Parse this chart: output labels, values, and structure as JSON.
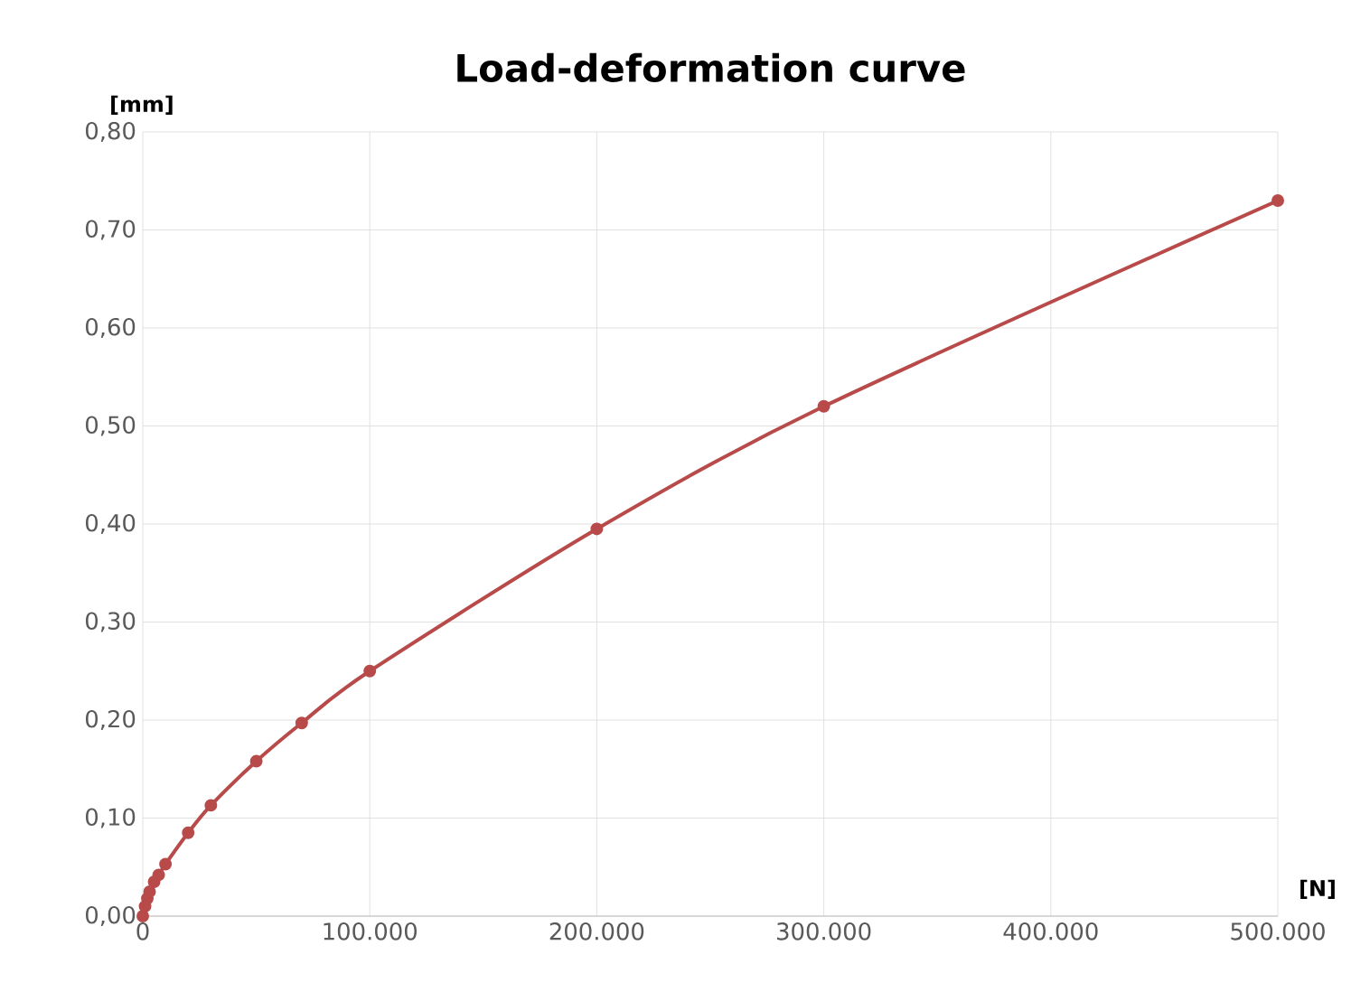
{
  "chart_data": {
    "type": "line",
    "title": "Load-deformation curve",
    "xlabel": "[N]",
    "ylabel": "[mm]",
    "x": [
      0,
      1000,
      2000,
      3000,
      5000,
      7000,
      10000,
      20000,
      30000,
      50000,
      70000,
      100000,
      200000,
      300000,
      500000
    ],
    "series": [
      {
        "color": "#b84a4a",
        "values": [
          0,
          0.01,
          0.018,
          0.025,
          0.035,
          0.042,
          0.053,
          0.085,
          0.113,
          0.158,
          0.197,
          0.25,
          0.395,
          0.52,
          0.73
        ]
      }
    ],
    "xlim": [
      0,
      500000
    ],
    "ylim": [
      0,
      0.8
    ],
    "xticks": [
      0,
      {
        "value": 100000,
        "label": "100.000"
      },
      {
        "value": 200000,
        "label": "200.000"
      },
      {
        "value": 300000,
        "label": "300.000"
      },
      {
        "value": 400000,
        "label": "400.000"
      },
      {
        "value": 500000,
        "label": "500.000"
      }
    ],
    "yticks": [
      {
        "value": 0,
        "label": "0,00"
      },
      {
        "value": 0.1,
        "label": "0,10"
      },
      {
        "value": 0.2,
        "label": "0,20"
      },
      {
        "value": 0.3,
        "label": "0,30"
      },
      {
        "value": 0.4,
        "label": "0,40"
      },
      {
        "value": 0.5,
        "label": "0,50"
      },
      {
        "value": 0.6,
        "label": "0,60"
      },
      {
        "value": 0.7,
        "label": "0,70"
      },
      {
        "value": 0.8,
        "label": "0,80"
      }
    ],
    "grid": true,
    "marker": "circle",
    "line_style": "solid"
  }
}
